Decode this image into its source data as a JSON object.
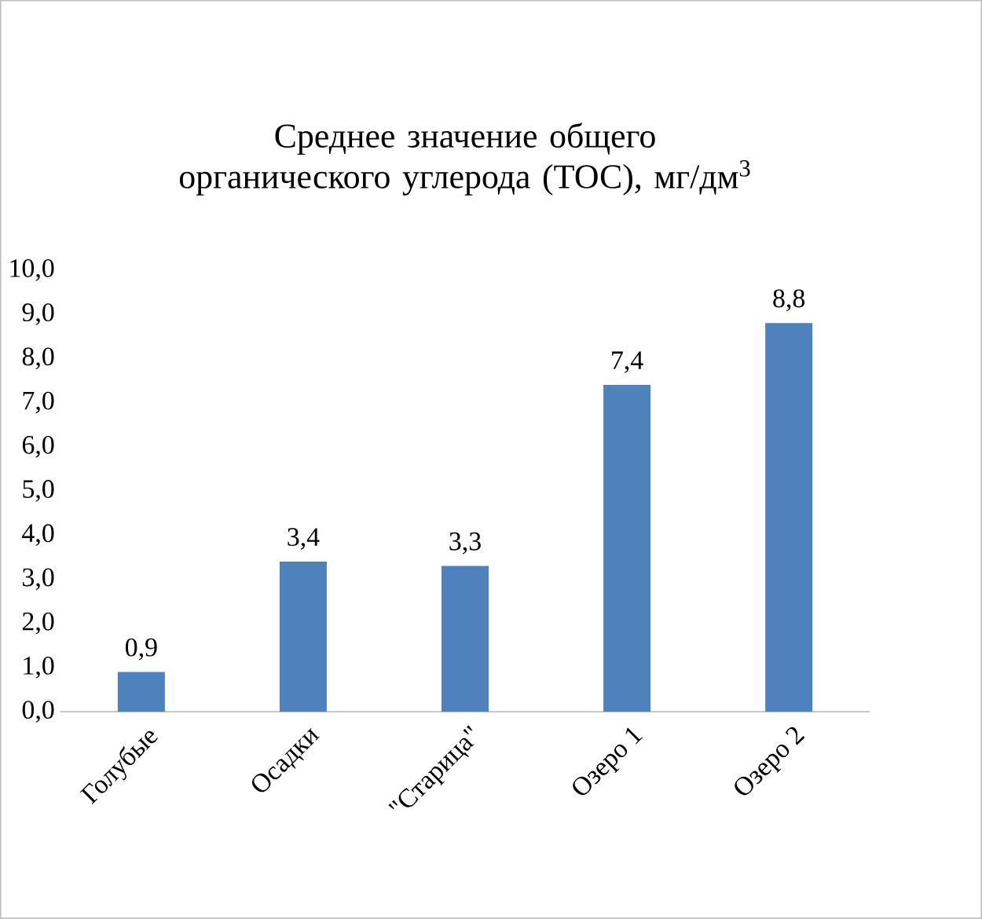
{
  "chart_data": {
    "type": "bar",
    "title": "Среднее значение общего органического углерода (ТОС), мг/дм$^{3}$",
    "categories": [
      "Голубые",
      "Осадки",
      "\"Старица\"",
      "Озеро 1",
      "Озеро 2"
    ],
    "values": [
      0.9,
      3.4,
      3.3,
      7.4,
      8.8
    ],
    "value_labels": [
      "0,9",
      "3,4",
      "3,3",
      "7,4",
      "8,8"
    ],
    "color": "#4f81bd",
    "ylim": [
      0,
      10
    ],
    "yticks": [
      {
        "value": 0,
        "label": "0,0"
      },
      {
        "value": 1,
        "label": "1,0"
      },
      {
        "value": 2,
        "label": "2,0"
      },
      {
        "value": 3,
        "label": "3,0"
      },
      {
        "value": 4,
        "label": "4,0"
      },
      {
        "value": 5,
        "label": "5,0"
      },
      {
        "value": 6,
        "label": "6,0"
      },
      {
        "value": 7,
        "label": "7,0"
      },
      {
        "value": 8,
        "label": "8,0"
      },
      {
        "value": 9,
        "label": "9,0"
      },
      {
        "value": 10,
        "label": "10,0"
      }
    ],
    "grid": false
  }
}
